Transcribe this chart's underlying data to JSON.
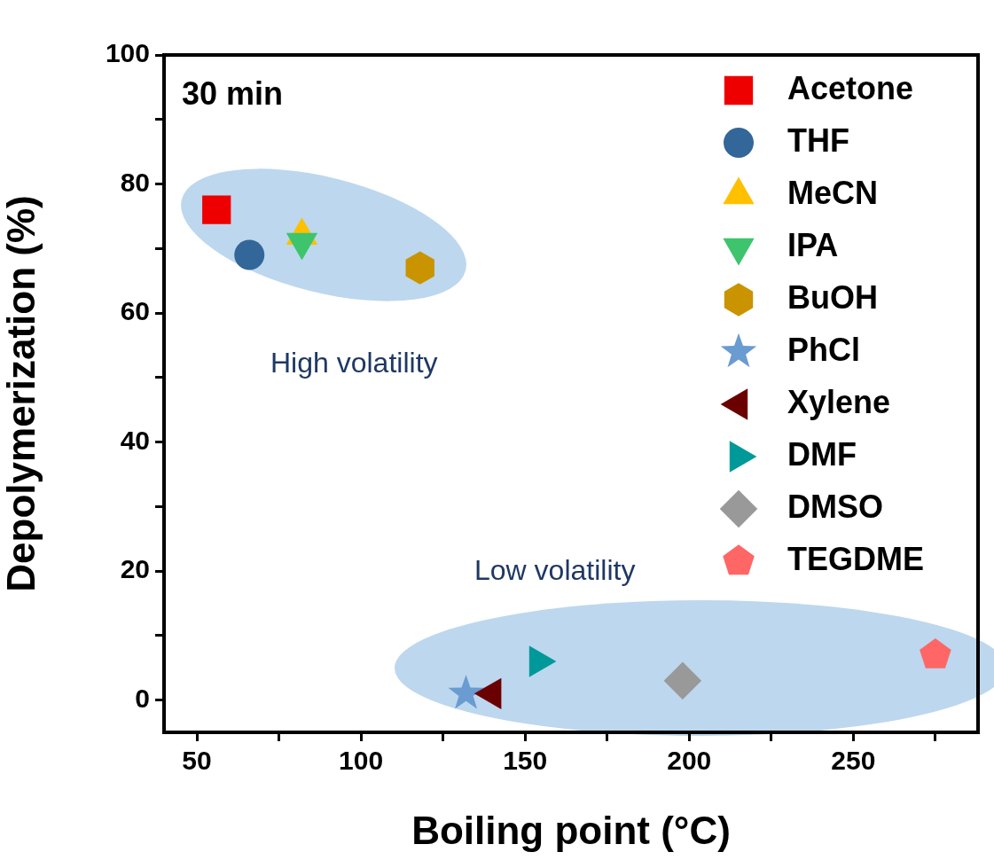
{
  "chart_data": {
    "type": "scatter",
    "xlabel": "Boiling point (°C)",
    "ylabel": "Depolymerization (%)",
    "xlim": [
      40,
      288
    ],
    "ylim": [
      -5,
      100
    ],
    "xticks": [
      50,
      {
        "value": 75,
        "label": null
      },
      100,
      {
        "value": 125,
        "label": null
      },
      150,
      {
        "value": 175,
        "label": null
      },
      200,
      {
        "value": 225,
        "label": null
      },
      250,
      {
        "value": 275,
        "label": null
      }
    ],
    "yticks": [
      0,
      {
        "value": 10,
        "label": null
      },
      20,
      {
        "value": 30,
        "label": null
      },
      40,
      {
        "value": 50,
        "label": null
      },
      60,
      {
        "value": 70,
        "label": null
      },
      80,
      {
        "value": 90,
        "label": null
      },
      100
    ],
    "grid": false,
    "legend": "top right",
    "annotations": [
      "30 min",
      "High volatility",
      "Low volatility"
    ],
    "series": [
      {
        "name": "Acetone",
        "color": "#ee0000",
        "marker": "square",
        "x": [
          56
        ],
        "values": [
          76
        ]
      },
      {
        "name": "THF",
        "color": "#336699",
        "marker": "circle",
        "x": [
          66
        ],
        "values": [
          69
        ]
      },
      {
        "name": "MeCN",
        "color": "#ffc000",
        "marker": "triangle",
        "x": [
          82
        ],
        "values": [
          72
        ]
      },
      {
        "name": "IPA",
        "color": "#3ec46d",
        "marker": "triangle-down",
        "x": [
          82
        ],
        "values": [
          71
        ]
      },
      {
        "name": "BuOH",
        "color": "#c99400",
        "x": [
          118
        ],
        "values": [
          67
        ]
      },
      {
        "name": "PhCl",
        "color": "#6a9bd1",
        "marker": "star",
        "x": [
          132
        ],
        "values": [
          1
        ]
      },
      {
        "name": "Xylene",
        "color": "#6b0000",
        "marker": "triangle-left",
        "x": [
          140
        ],
        "values": [
          1
        ]
      },
      {
        "name": "DMF",
        "color": "#009999",
        "marker": "triangle-right",
        "x": [
          154
        ],
        "values": [
          6
        ]
      },
      {
        "name": "DMSO",
        "color": "#999999",
        "marker": "diamond",
        "x": [
          198
        ],
        "values": [
          3
        ]
      },
      {
        "name": "TEGDME",
        "color": "#ff6666",
        "x": [
          275
        ],
        "values": [
          7
        ]
      }
    ]
  }
}
